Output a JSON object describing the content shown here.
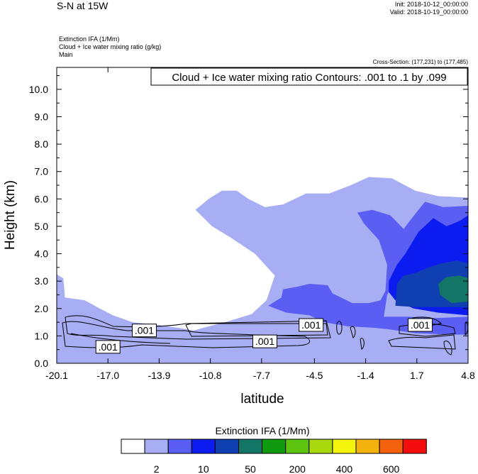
{
  "header": {
    "plot_title": "S-N at 15W",
    "init": "Init: 2018-10-12_00:00:00",
    "valid": "Valid: 2018-10-19_00:00:00",
    "fields": [
      "Extinction IFA   (1/Mm)",
      "Cloud + Ice water mixing ratio   (g/kg)",
      "Main"
    ],
    "cross_section": "Cross-Section: (177,231) to (177,485)"
  },
  "colors": {
    "c2": "#a8aef4",
    "c10": "#5a5ef2",
    "c50": "#0c1cf0",
    "c100": "#0f3fb0",
    "c200": "#137566"
  },
  "chart_data": {
    "type": "contour",
    "xlabel": "latitude",
    "ylabel": "Height (km)",
    "xlim": [
      -20.1,
      4.8
    ],
    "ylim": [
      0,
      10.8
    ],
    "x_ticks": [
      -20.1,
      -17.0,
      -13.9,
      -10.8,
      -7.7,
      -4.5,
      -1.4,
      1.7,
      4.8
    ],
    "x_tick_labels": [
      "-20.1",
      "-17.0",
      "-13.9",
      "-10.8",
      "-7.7",
      "-4.5",
      "-1.4",
      "1.7",
      "4.8"
    ],
    "y_ticks": [
      0,
      1,
      2,
      3,
      4,
      5,
      6,
      7,
      8,
      9,
      10
    ],
    "y_tick_labels": [
      "0.0",
      "1.0",
      "2.0",
      "3.0",
      "4.0",
      "5.0",
      "6.0",
      "7.0",
      "8.0",
      "9.0",
      "10.0"
    ],
    "contour_title": "Cloud + Ice water mixing ratio Contours: .001 to .1 by .099",
    "contour_labels": [
      {
        "text": ".001",
        "lat": -14.8,
        "height": 1.2
      },
      {
        "text": ".001",
        "lat": -17.0,
        "height": 0.6
      },
      {
        "text": ".001",
        "lat": -7.5,
        "height": 0.8
      },
      {
        "text": ".001",
        "lat": -4.7,
        "height": 1.4
      },
      {
        "text": ".001",
        "lat": 1.9,
        "height": 1.4
      }
    ],
    "filled_regions": [
      {
        "level": "2",
        "color_key": "c2",
        "polygon": [
          [
            -20.1,
            0
          ],
          [
            -20.1,
            3.25
          ],
          [
            -19.7,
            3.1
          ],
          [
            -19.6,
            2.4
          ],
          [
            -18.4,
            2.3
          ],
          [
            -17.5,
            2.0
          ],
          [
            -16.7,
            1.75
          ],
          [
            -15.5,
            1.5
          ],
          [
            -14.0,
            1.4
          ],
          [
            -12.8,
            1.3
          ],
          [
            -11.8,
            1.2
          ],
          [
            -10.9,
            1.35
          ],
          [
            -9.9,
            1.5
          ],
          [
            -8.3,
            1.8
          ],
          [
            -7.4,
            2.3
          ],
          [
            -6.9,
            3.2
          ],
          [
            -8.1,
            4.0
          ],
          [
            -9.6,
            4.6
          ],
          [
            -10.7,
            5.0
          ],
          [
            -11.7,
            5.6
          ],
          [
            -10.9,
            6.0
          ],
          [
            -10.1,
            6.3
          ],
          [
            -9.2,
            6.3
          ],
          [
            -8.5,
            6.0
          ],
          [
            -7.5,
            5.7
          ],
          [
            -6.4,
            5.8
          ],
          [
            -5.0,
            6.2
          ],
          [
            -3.6,
            6.2
          ],
          [
            -2.3,
            6.5
          ],
          [
            -1.2,
            6.8
          ],
          [
            0.2,
            6.75
          ],
          [
            1.6,
            6.3
          ],
          [
            3.0,
            6.1
          ],
          [
            4.8,
            6.05
          ],
          [
            4.8,
            0
          ]
        ]
      },
      {
        "level": "10",
        "color_key": "c10",
        "polygon": [
          [
            -6.4,
            2.7
          ],
          [
            -5.5,
            2.8
          ],
          [
            -4.8,
            2.9
          ],
          [
            -3.7,
            2.85
          ],
          [
            -3.4,
            2.55
          ],
          [
            -2.2,
            2.2
          ],
          [
            -1.2,
            2.2
          ],
          [
            -0.5,
            2.3
          ],
          [
            -0.2,
            2.65
          ],
          [
            -0.1,
            3.6
          ],
          [
            -0.6,
            4.5
          ],
          [
            -1.5,
            5.1
          ],
          [
            -1.9,
            5.5
          ],
          [
            -1.0,
            5.6
          ],
          [
            0.1,
            5.4
          ],
          [
            0.9,
            4.9
          ],
          [
            1.4,
            5.3
          ],
          [
            2.2,
            5.9
          ],
          [
            3.3,
            5.7
          ],
          [
            4.8,
            5.75
          ],
          [
            4.8,
            1.05
          ],
          [
            3.6,
            1.05
          ],
          [
            1.6,
            1.1
          ],
          [
            -0.1,
            1.25
          ],
          [
            -1.0,
            1.3
          ],
          [
            -2.5,
            1.35
          ],
          [
            -3.9,
            1.5
          ],
          [
            -4.8,
            1.75
          ],
          [
            -6.2,
            1.85
          ],
          [
            -7.3,
            2.1
          ],
          [
            -6.5,
            2.4
          ]
        ]
      },
      {
        "level": "2",
        "color_key": "c2",
        "polygon": [
          [
            -0.3,
            1.7
          ],
          [
            -0.1,
            2.5
          ],
          [
            0.6,
            3.3
          ],
          [
            1.5,
            3.5
          ],
          [
            2.2,
            4.3
          ],
          [
            3.4,
            4.6
          ],
          [
            4.5,
            4.4
          ],
          [
            4.8,
            4.2
          ],
          [
            4.8,
            1.7
          ],
          [
            2.8,
            1.65
          ],
          [
            1.2,
            1.7
          ]
        ]
      },
      {
        "level": "50",
        "color_key": "c50",
        "polygon": [
          [
            0.0,
            3.0
          ],
          [
            0.5,
            3.6
          ],
          [
            1.0,
            4.0
          ],
          [
            1.8,
            4.8
          ],
          [
            2.7,
            5.3
          ],
          [
            3.5,
            5.0
          ],
          [
            4.3,
            5.2
          ],
          [
            4.8,
            5.4
          ],
          [
            4.8,
            1.75
          ],
          [
            3.0,
            1.85
          ],
          [
            1.5,
            2.0
          ],
          [
            0.4,
            2.3
          ],
          [
            0.0,
            2.6
          ]
        ]
      },
      {
        "level": "100",
        "color_key": "c100",
        "polygon": [
          [
            0.4,
            2.1
          ],
          [
            0.5,
            2.9
          ],
          [
            0.9,
            3.2
          ],
          [
            1.6,
            3.3
          ],
          [
            2.4,
            3.5
          ],
          [
            3.2,
            3.65
          ],
          [
            4.1,
            3.75
          ],
          [
            4.8,
            3.65
          ],
          [
            4.8,
            2.05
          ],
          [
            3.1,
            2.05
          ],
          [
            1.6,
            2.05
          ]
        ]
      },
      {
        "level": "200",
        "color_key": "c200",
        "polygon": [
          [
            3.1,
            2.5
          ],
          [
            3.0,
            2.9
          ],
          [
            3.5,
            3.15
          ],
          [
            4.3,
            3.2
          ],
          [
            4.8,
            3.1
          ],
          [
            4.8,
            2.25
          ],
          [
            3.8,
            2.2
          ]
        ]
      }
    ],
    "legend": {
      "title": "Extinction IFA  (1/Mm)",
      "colors": [
        "#ffffff",
        "#a8aef4",
        "#5a5ef2",
        "#0c1cf0",
        "#0f3fb0",
        "#137566",
        "#0f9a10",
        "#5cc30f",
        "#a9d80f",
        "#f4f40d",
        "#f4b20d",
        "#f4610d",
        "#f40d0d"
      ],
      "labels": [
        {
          "text": "2",
          "box": 1
        },
        {
          "text": "10",
          "box": 3
        },
        {
          "text": "50",
          "box": 5
        },
        {
          "text": "200",
          "box": 7
        },
        {
          "text": "400",
          "box": 9
        },
        {
          "text": "600",
          "box": 11
        }
      ]
    }
  }
}
